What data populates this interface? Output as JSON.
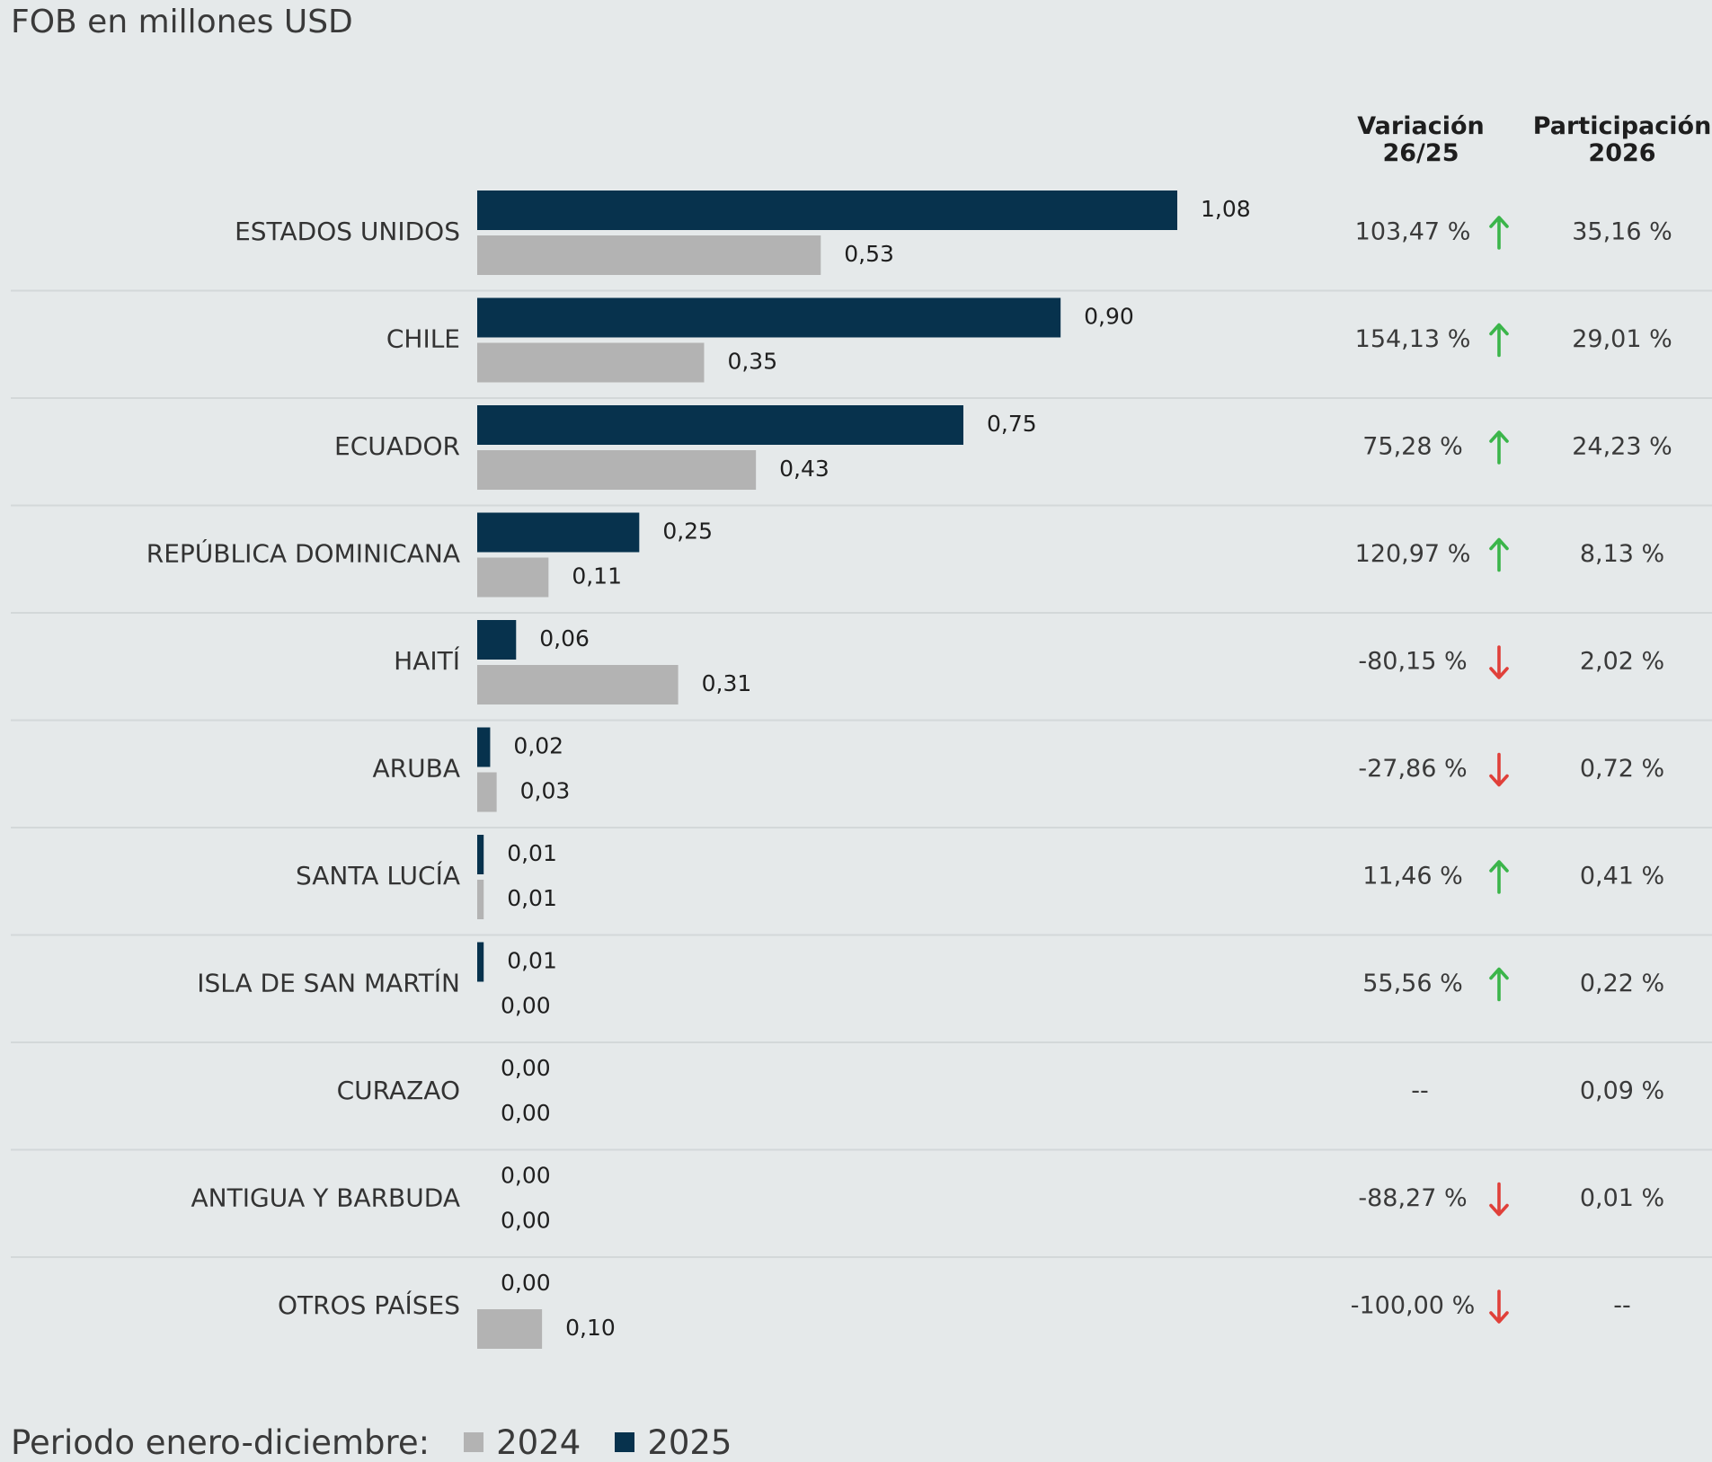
{
  "subtitle": "FOB en millones USD",
  "headers": {
    "variation": [
      "Variación",
      "26/25"
    ],
    "participation": [
      "Participación",
      "2026"
    ]
  },
  "colors": {
    "bar_2025": "#07324d",
    "bar_2024": "#b3b3b3",
    "up_arrow": "#3bb54a",
    "down_arrow": "#e0403a",
    "separator": "#d3d8d9"
  },
  "footer": {
    "period_label": "Periodo enero-diciembre:",
    "legend": [
      {
        "label": "2024",
        "color": "#b3b3b3"
      },
      {
        "label": "2025",
        "color": "#07324d"
      }
    ]
  },
  "chart_data": {
    "type": "bar",
    "orientation": "horizontal",
    "subtitle": "FOB en millones USD",
    "categories": [
      "ESTADOS UNIDOS",
      "CHILE",
      "ECUADOR",
      "REPÚBLICA DOMINICANA",
      "HAITÍ",
      "ARUBA",
      "SANTA LUCÍA",
      "ISLA DE SAN MARTÍN",
      "CURAZAO",
      "ANTIGUA Y BARBUDA",
      "OTROS PAÍSES"
    ],
    "series": [
      {
        "name": "2025",
        "color": "#07324d",
        "values": [
          1.08,
          0.9,
          0.75,
          0.25,
          0.06,
          0.02,
          0.01,
          0.01,
          0.0,
          0.0,
          0.0
        ],
        "labels": [
          "1,08",
          "0,90",
          "0,75",
          "0,25",
          "0,06",
          "0,02",
          "0,01",
          "0,01",
          "0,00",
          "0,00",
          "0,00"
        ]
      },
      {
        "name": "2024",
        "color": "#b3b3b3",
        "values": [
          0.53,
          0.35,
          0.43,
          0.11,
          0.31,
          0.03,
          0.01,
          0.0,
          0.0,
          0.0,
          0.1
        ],
        "labels": [
          "0,53",
          "0,35",
          "0,43",
          "0,11",
          "0,31",
          "0,03",
          "0,01",
          "0,00",
          "0,00",
          "0,00",
          "0,10"
        ]
      }
    ],
    "variation": [
      {
        "text": "103,47 %",
        "dir": "up"
      },
      {
        "text": "154,13 %",
        "dir": "up"
      },
      {
        "text": "75,28 %",
        "dir": "up"
      },
      {
        "text": "120,97 %",
        "dir": "up"
      },
      {
        "text": "-80,15 %",
        "dir": "down"
      },
      {
        "text": "-27,86 %",
        "dir": "down"
      },
      {
        "text": "11,46 %",
        "dir": "up"
      },
      {
        "text": "55,56 %",
        "dir": "up"
      },
      {
        "text": "--",
        "dir": "none"
      },
      {
        "text": "-88,27 %",
        "dir": "down"
      },
      {
        "text": "-100,00 %",
        "dir": "down"
      }
    ],
    "participation": [
      "35,16 %",
      "29,01 %",
      "24,23 %",
      "8,13 %",
      "2,02 %",
      "0,72 %",
      "0,41 %",
      "0,22 %",
      "0,09 %",
      "0,01 %",
      "--"
    ],
    "xlim": [
      0,
      1.08
    ],
    "grid": false,
    "legend_position": "bottom-left"
  }
}
